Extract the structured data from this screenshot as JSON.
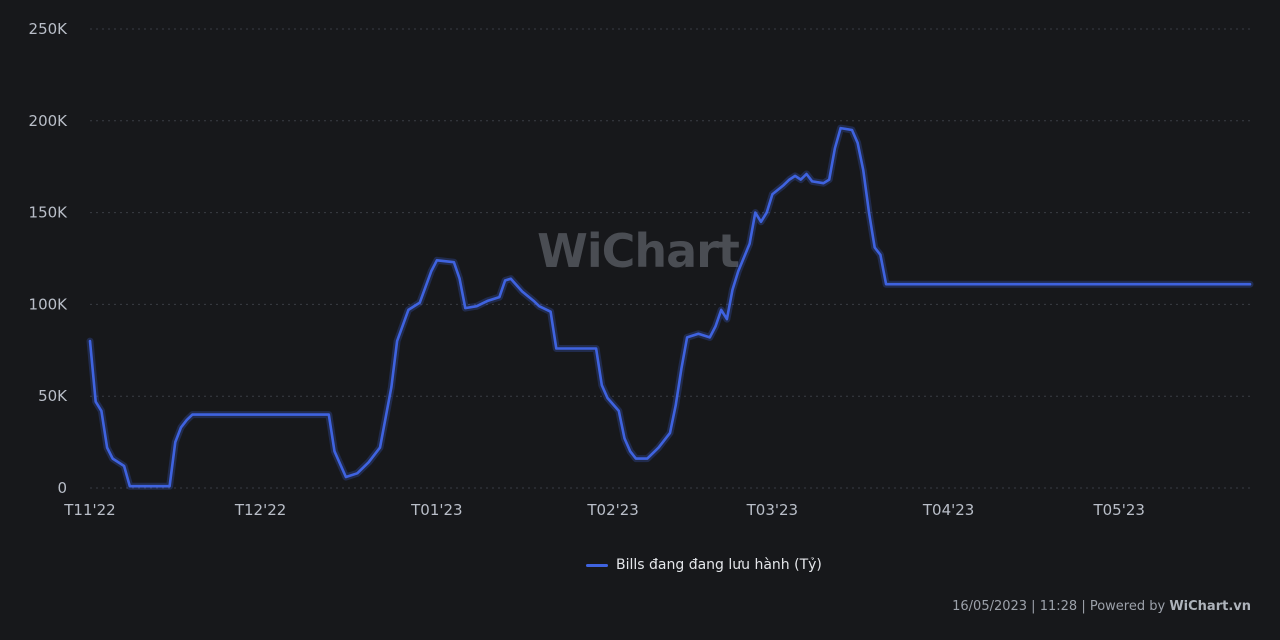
{
  "chart_data": {
    "type": "line",
    "ylim": [
      0,
      250000
    ],
    "y_ticks": [
      {
        "value": 0,
        "label": "0"
      },
      {
        "value": 50000,
        "label": "50K"
      },
      {
        "value": 100000,
        "label": "100K"
      },
      {
        "value": 150000,
        "label": "150K"
      },
      {
        "value": 200000,
        "label": "200K"
      },
      {
        "value": 250000,
        "label": "250K"
      }
    ],
    "x_range": [
      "2022-11-01",
      "2023-05-24"
    ],
    "x_ticks": [
      {
        "date": "2022-11-01",
        "label": "T11'22"
      },
      {
        "date": "2022-12-01",
        "label": "T12'22"
      },
      {
        "date": "2023-01-01",
        "label": "T01'23"
      },
      {
        "date": "2023-02-01",
        "label": "T02'23"
      },
      {
        "date": "2023-03-01",
        "label": "T03'23"
      },
      {
        "date": "2023-04-01",
        "label": "T04'23"
      },
      {
        "date": "2023-05-01",
        "label": "T05'23"
      }
    ],
    "grid": true,
    "legend_position": "bottom-center",
    "series": [
      {
        "name": "Bills đang đang lưu hành (Tỷ)",
        "color": "#3f63e0",
        "points": [
          [
            "2022-11-01",
            80000
          ],
          [
            "2022-11-02",
            47000
          ],
          [
            "2022-11-03",
            42000
          ],
          [
            "2022-11-04",
            22000
          ],
          [
            "2022-11-05",
            16000
          ],
          [
            "2022-11-07",
            12000
          ],
          [
            "2022-11-08",
            1000
          ],
          [
            "2022-11-15",
            1000
          ],
          [
            "2022-11-16",
            25000
          ],
          [
            "2022-11-17",
            33000
          ],
          [
            "2022-11-18",
            37000
          ],
          [
            "2022-11-19",
            40000
          ],
          [
            "2022-12-09",
            40000
          ],
          [
            "2022-12-13",
            40000
          ],
          [
            "2022-12-14",
            20000
          ],
          [
            "2022-12-16",
            6000
          ],
          [
            "2022-12-18",
            8000
          ],
          [
            "2022-12-20",
            14000
          ],
          [
            "2022-12-22",
            22000
          ],
          [
            "2022-12-24",
            55000
          ],
          [
            "2022-12-25",
            80000
          ],
          [
            "2022-12-27",
            97000
          ],
          [
            "2022-12-29",
            101000
          ],
          [
            "2022-12-31",
            118000
          ],
          [
            "2023-01-01",
            124000
          ],
          [
            "2023-01-04",
            123000
          ],
          [
            "2023-01-05",
            114000
          ],
          [
            "2023-01-06",
            98000
          ],
          [
            "2023-01-08",
            99000
          ],
          [
            "2023-01-10",
            102000
          ],
          [
            "2023-01-12",
            104000
          ],
          [
            "2023-01-13",
            113000
          ],
          [
            "2023-01-14",
            114000
          ],
          [
            "2023-01-16",
            107000
          ],
          [
            "2023-01-18",
            102000
          ],
          [
            "2023-01-19",
            99000
          ],
          [
            "2023-01-21",
            96000
          ],
          [
            "2023-01-22",
            76000
          ],
          [
            "2023-01-29",
            76000
          ],
          [
            "2023-01-30",
            56000
          ],
          [
            "2023-01-31",
            49000
          ],
          [
            "2023-02-02",
            42000
          ],
          [
            "2023-02-03",
            27000
          ],
          [
            "2023-02-04",
            20000
          ],
          [
            "2023-02-05",
            16000
          ],
          [
            "2023-02-07",
            16000
          ],
          [
            "2023-02-09",
            22000
          ],
          [
            "2023-02-11",
            30000
          ],
          [
            "2023-02-12",
            45000
          ],
          [
            "2023-02-13",
            65000
          ],
          [
            "2023-02-14",
            82000
          ],
          [
            "2023-02-16",
            84000
          ],
          [
            "2023-02-18",
            82000
          ],
          [
            "2023-02-19",
            88000
          ],
          [
            "2023-02-20",
            97000
          ],
          [
            "2023-02-21",
            92000
          ],
          [
            "2023-02-22",
            108000
          ],
          [
            "2023-02-23",
            118000
          ],
          [
            "2023-02-25",
            133000
          ],
          [
            "2023-02-26",
            150000
          ],
          [
            "2023-02-27",
            145000
          ],
          [
            "2023-02-28",
            150000
          ],
          [
            "2023-03-01",
            160000
          ],
          [
            "2023-03-03",
            165000
          ],
          [
            "2023-03-04",
            168000
          ],
          [
            "2023-03-05",
            170000
          ],
          [
            "2023-03-06",
            168000
          ],
          [
            "2023-03-07",
            171000
          ],
          [
            "2023-03-08",
            167000
          ],
          [
            "2023-03-10",
            166000
          ],
          [
            "2023-03-11",
            168000
          ],
          [
            "2023-03-12",
            185000
          ],
          [
            "2023-03-13",
            196000
          ],
          [
            "2023-03-15",
            195000
          ],
          [
            "2023-03-16",
            188000
          ],
          [
            "2023-03-17",
            173000
          ],
          [
            "2023-03-18",
            150000
          ],
          [
            "2023-03-19",
            131000
          ],
          [
            "2023-03-20",
            127000
          ],
          [
            "2023-03-21",
            111000
          ],
          [
            "2023-05-24",
            111000
          ]
        ]
      }
    ]
  },
  "watermark_text": "WiChart",
  "legend": {
    "label": "Bills đang đang lưu hành (Tỷ)",
    "color": "#3f63e0"
  },
  "footer": {
    "timestamp": "16/05/2023 | 11:28",
    "separator": "|",
    "powered_by": "Powered by",
    "brand": "WiChart.vn"
  }
}
